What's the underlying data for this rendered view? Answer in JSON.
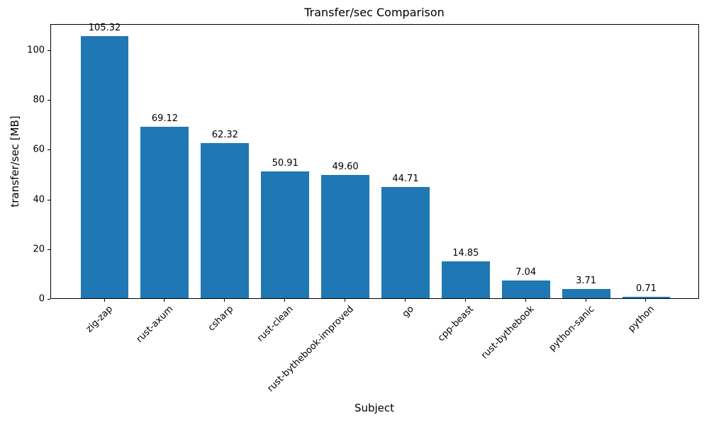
{
  "chart_data": {
    "type": "bar",
    "title": "Transfer/sec Comparison",
    "xlabel": "Subject",
    "ylabel": "transfer/sec [MB]",
    "categories": [
      "zig-zap",
      "rust-axum",
      "csharp",
      "rust-clean",
      "rust-bythebook-improved",
      "go",
      "cpp-beast",
      "rust-bythebook",
      "python-sanic",
      "python"
    ],
    "values": [
      105.32,
      69.12,
      62.32,
      50.91,
      49.6,
      44.71,
      14.85,
      7.04,
      3.71,
      0.71
    ],
    "value_labels": [
      "105.32",
      "69.12",
      "62.32",
      "50.91",
      "49.60",
      "44.71",
      "14.85",
      "7.04",
      "3.71",
      "0.71"
    ],
    "yticks": [
      "0",
      "20",
      "40",
      "60",
      "80",
      "100"
    ],
    "ytick_values": [
      0,
      20,
      40,
      60,
      80,
      100
    ],
    "ylim": [
      0,
      110.586
    ],
    "bar_color": "#1f77b4",
    "axis_color": "#000000",
    "background_color": "#ffffff",
    "grid": false,
    "legend": null,
    "bar_width_fraction": 0.8,
    "x_margin_fraction": 0.05
  }
}
